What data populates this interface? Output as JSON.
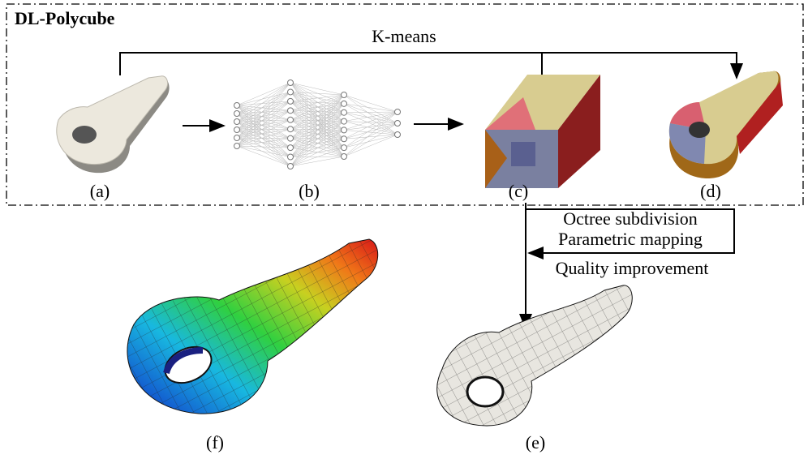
{
  "title": "DL-Polycube",
  "bracket_label": "K-means",
  "panels": [
    {
      "label": "(a)"
    },
    {
      "label": "(b)"
    },
    {
      "label": "(c)"
    },
    {
      "label": "(d)"
    },
    {
      "label": "(e)"
    },
    {
      "label": "(f)"
    }
  ],
  "steps": [
    "Octree subdivision",
    "Parametric mapping",
    "Quality improvement"
  ]
}
